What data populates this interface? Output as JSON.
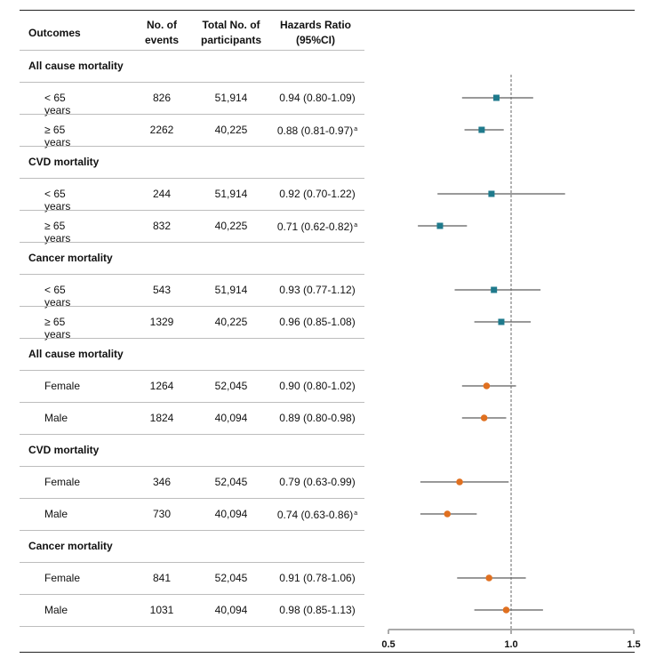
{
  "headers": {
    "outcome": "Outcomes",
    "events_1": "No. of",
    "events_2": "events",
    "total_1": "Total No. of",
    "total_2": "participants",
    "hr_1": "Hazards Ratio",
    "hr_2": "(95%CI)"
  },
  "footnote_marker": "a",
  "colors": {
    "age": "#1f7a8c",
    "sex": "#e07020"
  },
  "groups": [
    {
      "label": "All cause mortality",
      "rows": [
        {
          "label": "< 65 years",
          "events": "826",
          "total": "51,914",
          "hr_text": "0.94 (0.80-1.09)",
          "hr": 0.94,
          "lo": 0.8,
          "hi": 1.09,
          "sup": "",
          "kind": "age"
        },
        {
          "label": "≥ 65 years",
          "events": "2262",
          "total": "40,225",
          "hr_text": "0.88 (0.81-0.97)",
          "hr": 0.88,
          "lo": 0.81,
          "hi": 0.97,
          "sup": "a",
          "kind": "age"
        }
      ]
    },
    {
      "label": "CVD mortality",
      "rows": [
        {
          "label": "< 65 years",
          "events": "244",
          "total": "51,914",
          "hr_text": "0.92 (0.70-1.22)",
          "hr": 0.92,
          "lo": 0.7,
          "hi": 1.22,
          "sup": "",
          "kind": "age"
        },
        {
          "label": "≥ 65 years",
          "events": "832",
          "total": "40,225",
          "hr_text": "0.71 (0.62-0.82)",
          "hr": 0.71,
          "lo": 0.62,
          "hi": 0.82,
          "sup": "a",
          "kind": "age"
        }
      ]
    },
    {
      "label": "Cancer mortality",
      "rows": [
        {
          "label": "< 65 years",
          "events": "543",
          "total": "51,914",
          "hr_text": "0.93 (0.77-1.12)",
          "hr": 0.93,
          "lo": 0.77,
          "hi": 1.12,
          "sup": "",
          "kind": "age"
        },
        {
          "label": "≥ 65 years",
          "events": "1329",
          "total": "40,225",
          "hr_text": "0.96 (0.85-1.08)",
          "hr": 0.96,
          "lo": 0.85,
          "hi": 1.08,
          "sup": "",
          "kind": "age"
        }
      ]
    },
    {
      "label": "All cause mortality",
      "rows": [
        {
          "label": "Female",
          "events": "1264",
          "total": "52,045",
          "hr_text": "0.90 (0.80-1.02)",
          "hr": 0.9,
          "lo": 0.8,
          "hi": 1.02,
          "sup": "",
          "kind": "sex"
        },
        {
          "label": "Male",
          "events": "1824",
          "total": "40,094",
          "hr_text": "0.89 (0.80-0.98)",
          "hr": 0.89,
          "lo": 0.8,
          "hi": 0.98,
          "sup": "",
          "kind": "sex"
        }
      ]
    },
    {
      "label": "CVD mortality",
      "rows": [
        {
          "label": "Female",
          "events": "346",
          "total": "52,045",
          "hr_text": "0.79 (0.63-0.99)",
          "hr": 0.79,
          "lo": 0.63,
          "hi": 0.99,
          "sup": "",
          "kind": "sex"
        },
        {
          "label": "Male",
          "events": "730",
          "total": "40,094",
          "hr_text": "0.74 (0.63-0.86)",
          "hr": 0.74,
          "lo": 0.63,
          "hi": 0.86,
          "sup": "a",
          "kind": "sex"
        }
      ]
    },
    {
      "label": "Cancer mortality",
      "rows": [
        {
          "label": "Female",
          "events": "841",
          "total": "52,045",
          "hr_text": "0.91 (0.78-1.06)",
          "hr": 0.91,
          "lo": 0.78,
          "hi": 1.06,
          "sup": "",
          "kind": "sex"
        },
        {
          "label": "Male",
          "events": "1031",
          "total": "40,094",
          "hr_text": "0.98 (0.85-1.13)",
          "hr": 0.98,
          "lo": 0.85,
          "hi": 1.13,
          "sup": "",
          "kind": "sex"
        }
      ]
    }
  ],
  "chart_data": {
    "type": "scatter",
    "xlim": [
      0.5,
      1.5
    ],
    "xticks": [
      "0.5",
      "1.0",
      "1.5"
    ],
    "reference_line": 1.0,
    "grid": false,
    "title": "",
    "xlabel": "",
    "ylabel": ""
  }
}
